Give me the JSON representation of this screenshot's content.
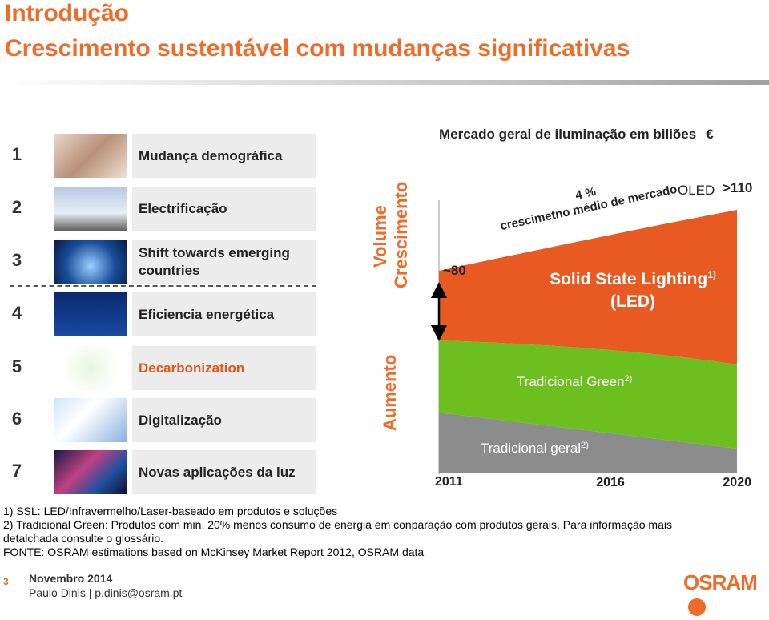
{
  "header": {
    "title": "Introdução",
    "subtitle": "Crescimento sustentável com mudanças significativas"
  },
  "items": [
    {
      "number": "1",
      "label": "Mudança demográfica"
    },
    {
      "number": "2",
      "label": "Electrificação"
    },
    {
      "number": "3",
      "label": "Shift towards emerging countries"
    },
    {
      "number": "4",
      "label": "Eficiencia energética"
    },
    {
      "number": "5",
      "label": "Decarbonization"
    },
    {
      "number": "6",
      "label": "Digitalização"
    },
    {
      "number": "7",
      "label": "Novas aplicações da luz"
    }
  ],
  "side_labels": {
    "volume": "Volume",
    "growth": "Crescimento",
    "increase": "Aumento"
  },
  "market": {
    "title": "Mercado geral de iluminação em biliões",
    "currency": "€",
    "start_value": "~80",
    "end_value": ">110",
    "growth_rate": "4 %",
    "growth_label": "crescimetno médio de mercado",
    "oled": "OLED",
    "ssl": "Solid State Lighting",
    "ssl_note": "1)",
    "ssl_sub": "(LED)",
    "green": "Tradicional Green",
    "green_note": "2)",
    "general": "Tradicional geral",
    "general_note": "2)",
    "years": [
      "2011",
      "2016",
      "2020"
    ]
  },
  "footnotes": [
    "1) SSL: LED/Infravermelho/Laser-baseado em produtos e soluções",
    "2) Tradicional Green: Produtos com min. 20% menos consumo de energia em conparação com produtos gerais. Para informação mais detalchada consulte o glossário.",
    "FONTE: OSRAM estimations based on McKinsey Market Report 2012, OSRAM data"
  ],
  "footer": {
    "page": "3",
    "date": "Novembro 2014",
    "author": "Paulo Dinis | p.dinis@osram.pt",
    "logo": "OSRAM"
  }
}
